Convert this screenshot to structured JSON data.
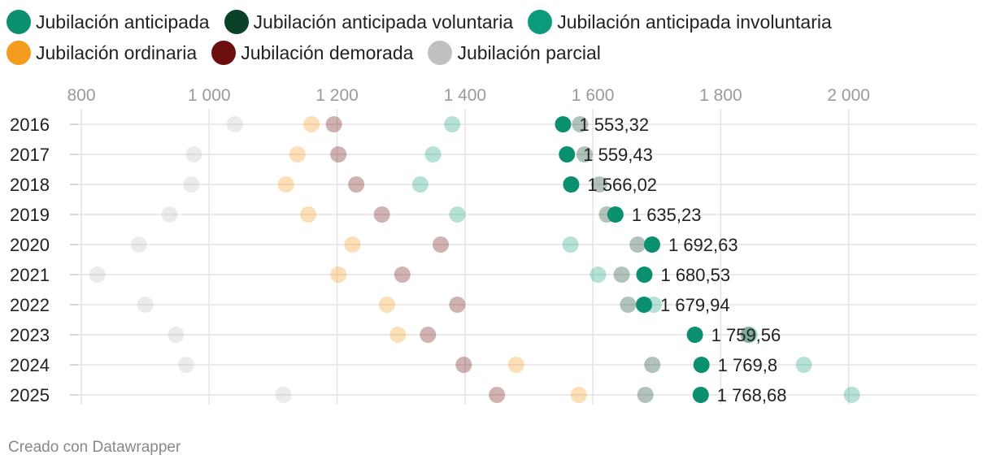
{
  "legend": [
    {
      "label": "Jubilación anticipada",
      "color": "#0a8f6f"
    },
    {
      "label": "Jubilación anticipada voluntaria",
      "color": "#0b4128"
    },
    {
      "label": "Jubilación anticipada involuntaria",
      "color": "#0b9a7a"
    },
    {
      "label": "Jubilación ordinaria",
      "color": "#f59c1f"
    },
    {
      "label": "Jubilación demorada",
      "color": "#6a0f0d"
    },
    {
      "label": "Jubilación parcial",
      "color": "#c0c0c0"
    }
  ],
  "chart_data": {
    "type": "scatter",
    "subtype": "dot-plot",
    "x_ticks": [
      800,
      1000,
      1200,
      1400,
      1600,
      1800,
      2000
    ],
    "x_tick_labels": [
      "800",
      "1 000",
      "1 200",
      "1 400",
      "1 600",
      "1 800",
      "2 000"
    ],
    "xlim": [
      800,
      2200
    ],
    "categories": [
      "2016",
      "2017",
      "2018",
      "2019",
      "2020",
      "2021",
      "2022",
      "2023",
      "2024",
      "2025"
    ],
    "highlight_series": "Jubilación anticipada",
    "value_labels": [
      "1 553,32",
      "1 559,43",
      "1 566,02",
      "1 635,23",
      "1 692,63",
      "1 680,53",
      "1 679,94",
      "1 759,56",
      "1 769,8",
      "1 768,68"
    ],
    "series": [
      {
        "name": "Jubilación parcial",
        "color": "#c0c0c0",
        "opacity": 0.32,
        "values": [
          1040,
          976,
          972,
          938,
          890,
          825,
          900,
          948,
          964,
          1116
        ]
      },
      {
        "name": "Jubilación ordinaria",
        "color": "#f59c1f",
        "opacity": 0.32,
        "values": [
          1160,
          1138,
          1120,
          1155,
          1224,
          1202,
          1278,
          1295,
          1480,
          1578
        ]
      },
      {
        "name": "Jubilación demorada",
        "color": "#6a0f0d",
        "opacity": 0.32,
        "values": [
          1195,
          1202,
          1230,
          1270,
          1362,
          1302,
          1388,
          1342,
          1398,
          1450
        ]
      },
      {
        "name": "Jubilación anticipada involuntaria",
        "color": "#0b9a7a",
        "opacity": 0.3,
        "values": [
          1380,
          1350,
          1330,
          1388,
          1565,
          1608,
          1695,
          1845,
          1930,
          2005
        ]
      },
      {
        "name": "Jubilación anticipada voluntaria",
        "color": "#0b4128",
        "opacity": 0.32,
        "values": [
          1580,
          1587,
          1610,
          1622,
          1670,
          1645,
          1655,
          1843,
          1693,
          1682
        ]
      },
      {
        "name": "Jubilación anticipada",
        "color": "#0a8f6f",
        "opacity": 1,
        "values": [
          1553.32,
          1559.43,
          1566.02,
          1635.23,
          1692.63,
          1680.53,
          1679.94,
          1759.56,
          1769.8,
          1768.68
        ]
      }
    ]
  },
  "footer": "Creado con Datawrapper"
}
